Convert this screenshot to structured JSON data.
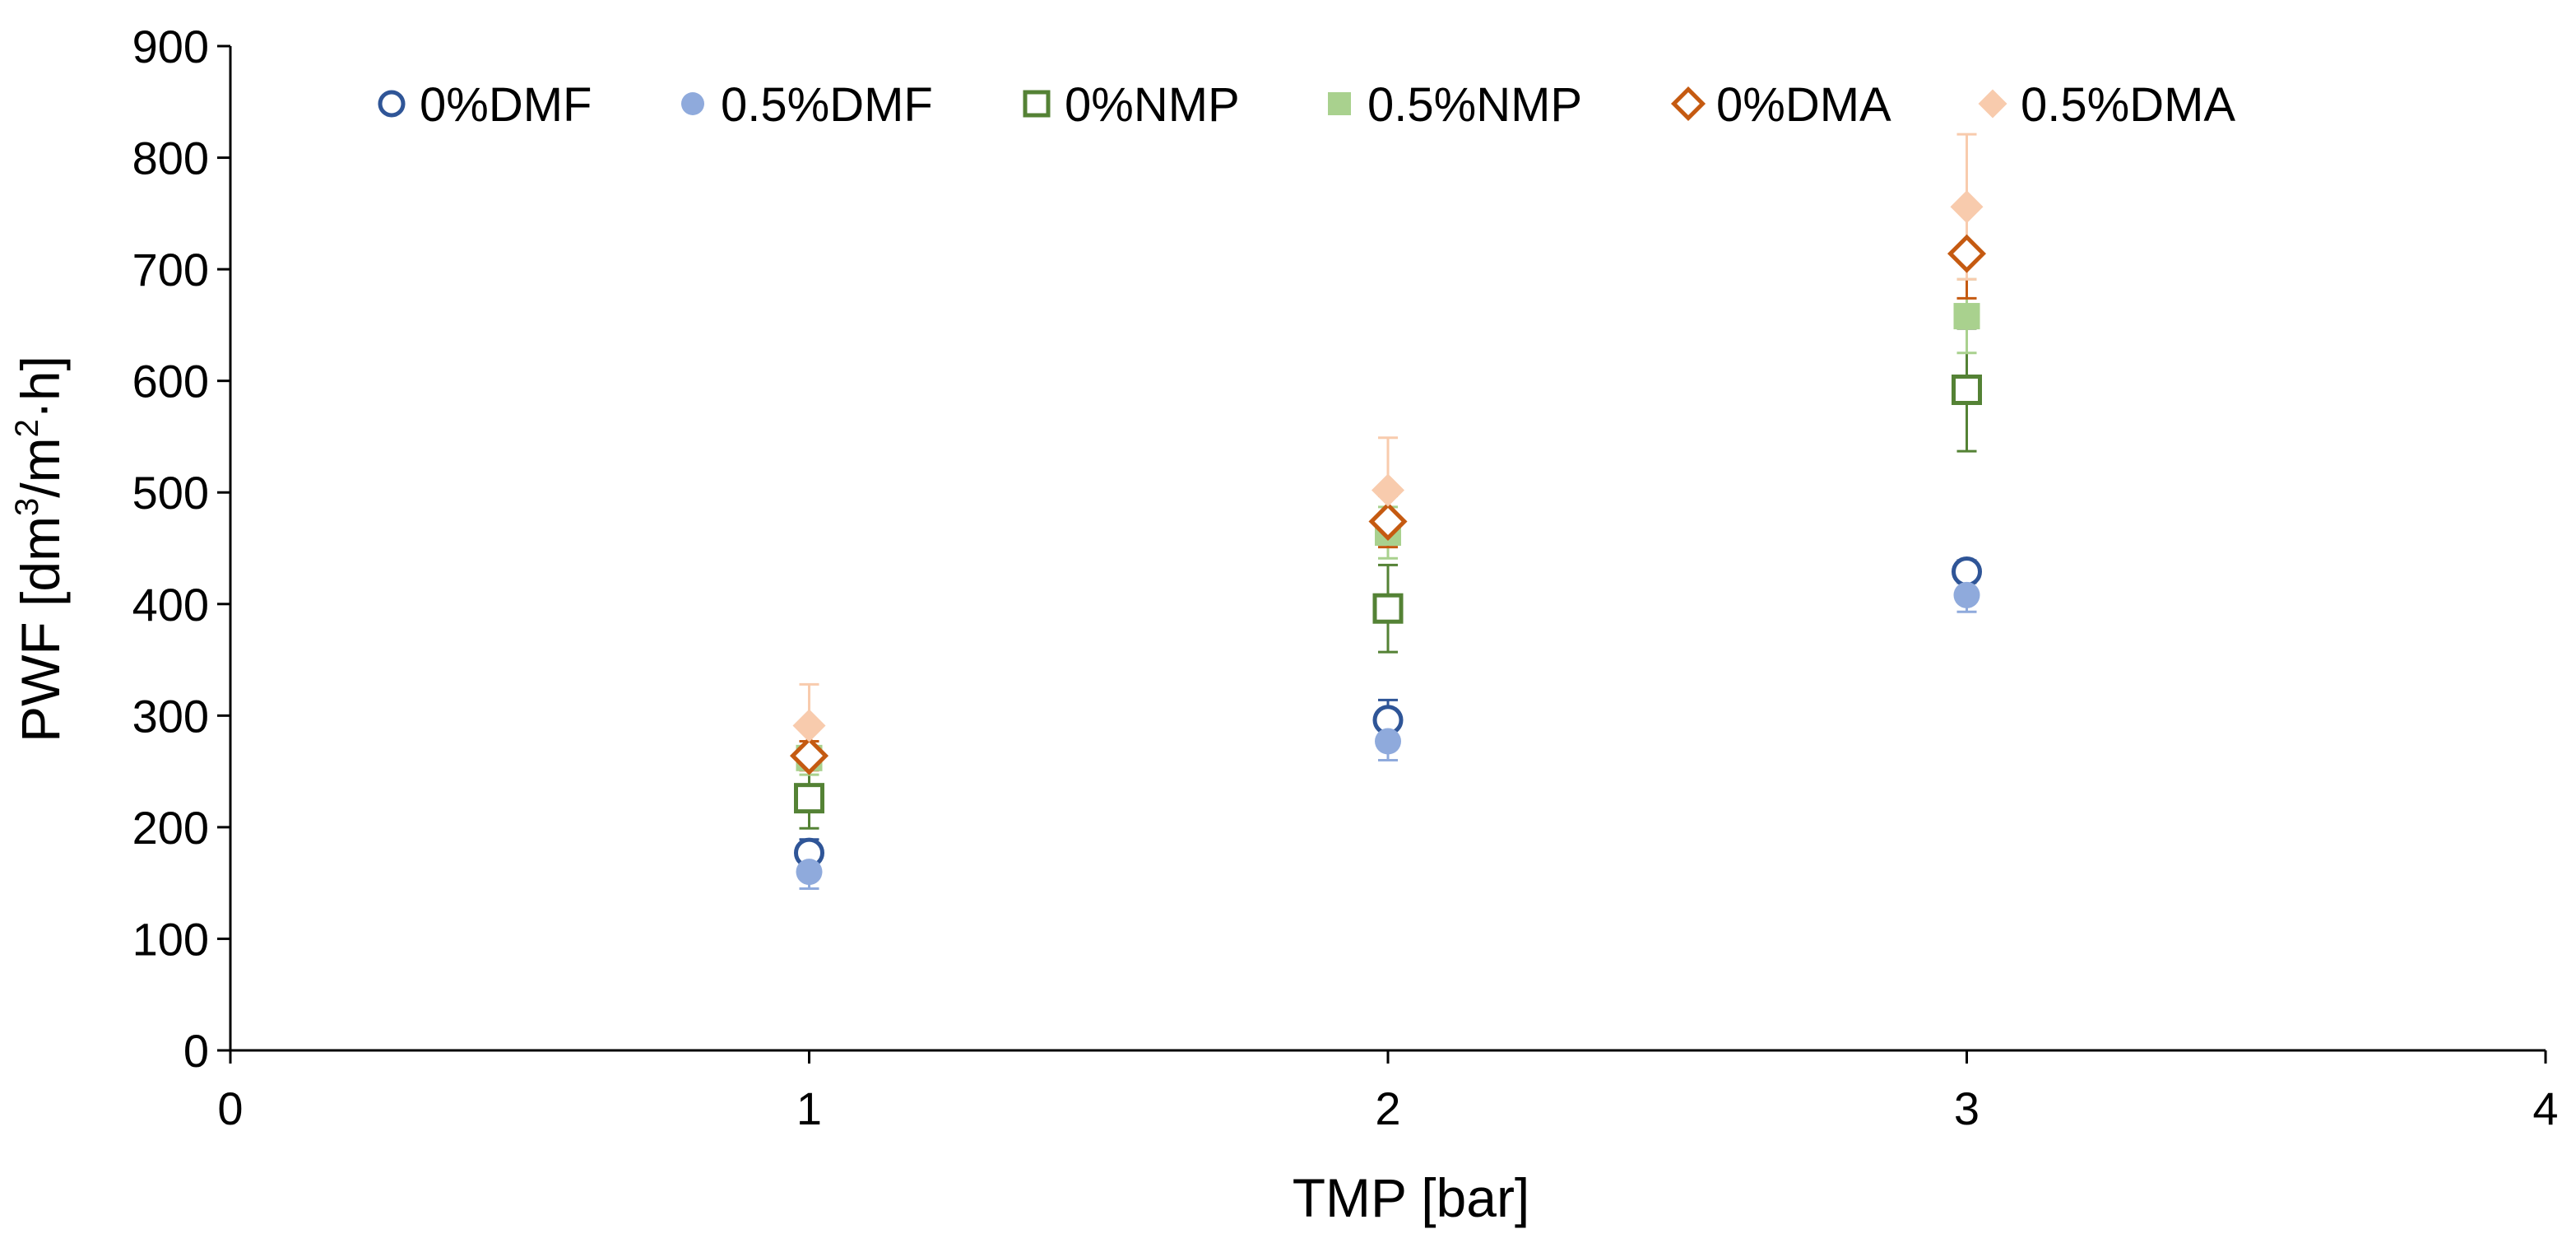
{
  "chart_data": {
    "type": "scatter",
    "title": "",
    "xlabel": "TMP [bar]",
    "ylabel_parts": {
      "pre": "PWF [dm",
      "sup1": "3",
      "mid": "/m",
      "sup2": "2",
      "post": "·h]"
    },
    "xlim": [
      0,
      4
    ],
    "ylim": [
      0,
      900
    ],
    "x_ticks": [
      0,
      1,
      2,
      3,
      4
    ],
    "y_ticks": [
      0,
      100,
      200,
      300,
      400,
      500,
      600,
      700,
      800,
      900
    ],
    "grid": false,
    "legend_position": "top",
    "series": [
      {
        "name": "0%DMF",
        "marker": "circle",
        "filled": false,
        "color": "#2F5597",
        "points": [
          {
            "x": 1,
            "y": 177,
            "err": 12
          },
          {
            "x": 2,
            "y": 296,
            "err": 18
          },
          {
            "x": 3,
            "y": 429,
            "err": 10
          }
        ]
      },
      {
        "name": "0.5%DMF",
        "marker": "circle",
        "filled": true,
        "color": "#8FAADC",
        "points": [
          {
            "x": 1,
            "y": 160,
            "err": 15
          },
          {
            "x": 2,
            "y": 277,
            "err": 17
          },
          {
            "x": 3,
            "y": 408,
            "err": 15
          }
        ]
      },
      {
        "name": "0%NMP",
        "marker": "square",
        "filled": false,
        "color": "#548235",
        "points": [
          {
            "x": 1,
            "y": 226,
            "err": 27
          },
          {
            "x": 2,
            "y": 396,
            "err": 39
          },
          {
            "x": 3,
            "y": 592,
            "err": 55
          }
        ]
      },
      {
        "name": "0.5%NMP",
        "marker": "square",
        "filled": true,
        "color": "#A9D18E",
        "points": [
          {
            "x": 1,
            "y": 262,
            "err": 15
          },
          {
            "x": 2,
            "y": 464,
            "err": 23
          },
          {
            "x": 3,
            "y": 658,
            "err": 33
          }
        ]
      },
      {
        "name": "0%DMA",
        "marker": "diamond",
        "filled": false,
        "color": "#C55A11",
        "points": [
          {
            "x": 1,
            "y": 264,
            "err": 13
          },
          {
            "x": 2,
            "y": 474,
            "err": 23
          },
          {
            "x": 3,
            "y": 714,
            "err": 40
          }
        ]
      },
      {
        "name": "0.5%DMA",
        "marker": "diamond",
        "filled": true,
        "color": "#F8CBAD",
        "points": [
          {
            "x": 1,
            "y": 291,
            "err": 37
          },
          {
            "x": 2,
            "y": 502,
            "err": 47
          },
          {
            "x": 3,
            "y": 756,
            "err": 65
          }
        ]
      }
    ]
  }
}
